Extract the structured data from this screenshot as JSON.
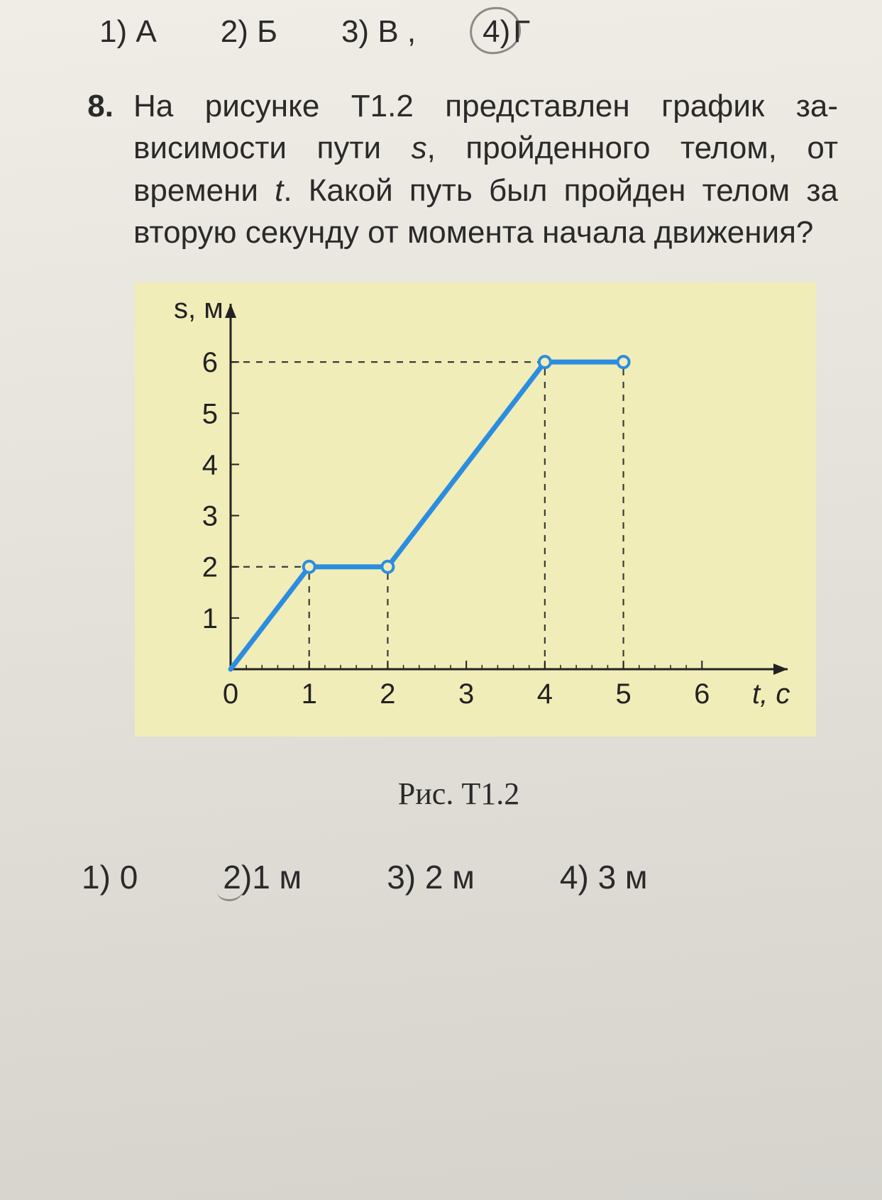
{
  "previous_options": [
    {
      "n": "1)",
      "label": "А",
      "circled": false
    },
    {
      "n": "2)",
      "label": "Б",
      "circled": false
    },
    {
      "n": "3)",
      "label": "В",
      "circled": false,
      "trailing": ","
    },
    {
      "n": "4)",
      "label": "Г",
      "circled": true
    }
  ],
  "question": {
    "number": "8.",
    "text_parts": [
      "На рисунке Т1.2 представлен график за­висимости пути ",
      "s",
      ", пройденного телом, от времени ",
      "t",
      ". Какой путь был пройден те­лом за вторую секунду от момента нача­ла движения?"
    ],
    "italic_indices": [
      1,
      3
    ]
  },
  "chart": {
    "type": "line",
    "y_label": "s, м",
    "x_label": "t, с",
    "x_ticks": [
      0,
      1,
      2,
      3,
      4,
      5,
      6
    ],
    "y_ticks": [
      1,
      2,
      3,
      4,
      5,
      6
    ],
    "xlim": [
      0,
      7
    ],
    "ylim": [
      0,
      7
    ],
    "series": [
      {
        "x": 0,
        "y": 0
      },
      {
        "x": 1,
        "y": 2
      },
      {
        "x": 2,
        "y": 2
      },
      {
        "x": 4,
        "y": 6
      },
      {
        "x": 5,
        "y": 6
      }
    ],
    "marker_points": [
      {
        "x": 1,
        "y": 2
      },
      {
        "x": 2,
        "y": 2
      },
      {
        "x": 4,
        "y": 6
      },
      {
        "x": 5,
        "y": 6
      }
    ],
    "guide_lines_v": [
      {
        "x": 1,
        "y0": 0,
        "y1": 2
      },
      {
        "x": 2,
        "y0": 0,
        "y1": 2
      },
      {
        "x": 4,
        "y0": 0,
        "y1": 6
      },
      {
        "x": 5,
        "y0": 0,
        "y1": 6
      }
    ],
    "guide_lines_h": [
      {
        "y": 2,
        "x0": 0,
        "x1": 1
      },
      {
        "y": 6,
        "x0": 0,
        "x1": 4
      }
    ],
    "axis_color": "#222222",
    "line_color": "#2c8de0",
    "line_width": 7,
    "marker_radius": 8,
    "marker_fill": "#f0edb9",
    "marker_stroke": "#2c8de0",
    "dash_color": "#3b3b3b",
    "dash_pattern": "9 9",
    "background_color": "#f0edb9",
    "tick_fontsize": 40,
    "label_fontsize": 40,
    "minor_tick_count": 5,
    "tick_len": 12,
    "minor_tick_len": 6
  },
  "caption": "Рис. Т1.2",
  "answer_options": [
    {
      "n": "1)",
      "label": "0",
      "marked": false
    },
    {
      "n": "2)",
      "label": "1 м",
      "marked": true
    },
    {
      "n": "3)",
      "label": "2 м",
      "marked": false
    },
    {
      "n": "4)",
      "label": "3 м",
      "marked": false
    }
  ]
}
